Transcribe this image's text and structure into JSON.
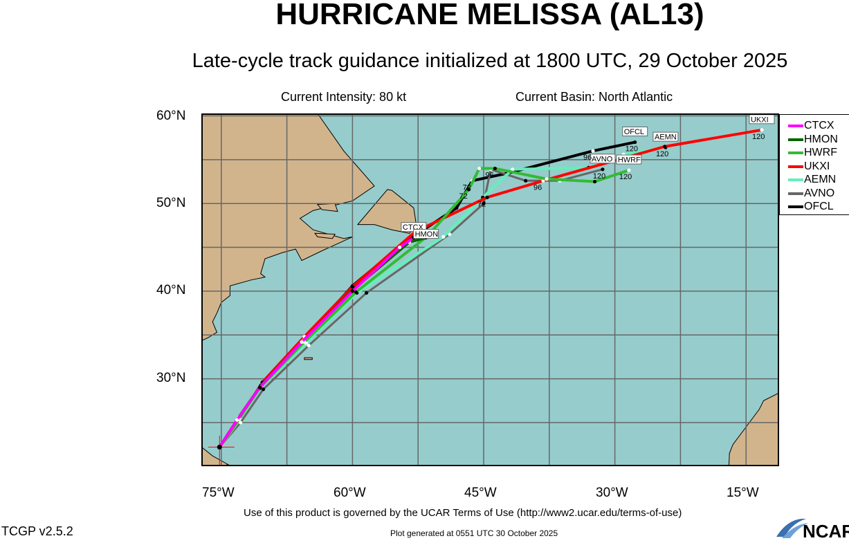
{
  "header": {
    "title": "HURRICANE MELISSA (AL13)",
    "subtitle": "Late-cycle track guidance initialized at 1800 UTC, 29 October 2025",
    "intensity": "Current Intensity: 80 kt",
    "basin": "Current Basin: North Atlantic"
  },
  "footer": {
    "terms": "Use of this product is governed by the UCAR Terms of Use (http://www2.ucar.edu/terms-of-use)",
    "version": "TCGP v2.5.2",
    "generated": "Plot generated at 0551 UTC   30 October 2025",
    "logo": "NCAR"
  },
  "chart_data": {
    "type": "map-tracks",
    "lon_range": [
      -77.2,
      -11.3
    ],
    "lat_range": [
      20.1,
      60.2
    ],
    "lat_ticks": [
      "60°N",
      "50°N",
      "40°N",
      "30°N"
    ],
    "lon_ticks": [
      "75°W",
      "60°W",
      "45°W",
      "30°W",
      "15°W"
    ],
    "colors": {
      "ocean": "#96cccc",
      "land": "#d2b48c",
      "grid": "#666666"
    },
    "series": [
      {
        "name": "CTCX",
        "color": "#ff00ff",
        "points": [
          [
            -75.2,
            22.2
          ],
          [
            -73.2,
            25.3
          ],
          [
            -70.6,
            29.0
          ],
          [
            -65.8,
            34.2
          ],
          [
            -60.0,
            40.0
          ],
          [
            -54.6,
            45.0
          ],
          [
            -53.0,
            46.1
          ]
        ],
        "end_label": "CTCX"
      },
      {
        "name": "HMON",
        "color": "#006400",
        "points": [
          [
            -75.2,
            22.2
          ],
          [
            -73.0,
            25.6
          ],
          [
            -70.5,
            29.2
          ],
          [
            -65.6,
            34.4
          ],
          [
            -59.8,
            40.3
          ],
          [
            -53.5,
            45.6
          ],
          [
            -51.6,
            46.1
          ]
        ],
        "end_label": "HMON"
      },
      {
        "name": "HWRF",
        "color": "#33bb33",
        "points": [
          [
            -75.2,
            22.2
          ],
          [
            -73.0,
            25.4
          ],
          [
            -70.5,
            29.1
          ],
          [
            -65.5,
            34.2
          ],
          [
            -59.6,
            39.9
          ],
          [
            -51.4,
            46.3
          ],
          [
            -46.7,
            51.6
          ],
          [
            -45.5,
            54.0
          ],
          [
            -43.7,
            54.0
          ],
          [
            -37.8,
            52.8
          ],
          [
            -32.3,
            52.5
          ],
          [
            -28.4,
            53.8
          ]
        ],
        "end_label": "HWRF",
        "hour_labels": [
          [
            "72",
            -46.7,
            51.6
          ],
          [
            "96",
            -43.7,
            54.0
          ],
          [
            "120",
            -28.4,
            53.8
          ]
        ]
      },
      {
        "name": "UKXI",
        "color": "#ff0000",
        "points": [
          [
            -75.2,
            22.2
          ],
          [
            -72.9,
            25.5
          ],
          [
            -70.3,
            29.6
          ],
          [
            -65.5,
            34.8
          ],
          [
            -60.0,
            40.5
          ],
          [
            -52.8,
            46.8
          ],
          [
            -44.6,
            50.7
          ],
          [
            -38.2,
            52.6
          ],
          [
            -24.3,
            56.5
          ],
          [
            -13.2,
            58.4
          ]
        ],
        "end_label": "UKXI",
        "hour_labels": [
          [
            "72",
            -44.6,
            50.7
          ],
          [
            "96",
            -38.2,
            52.6
          ],
          [
            "120",
            -13.2,
            58.4
          ]
        ]
      },
      {
        "name": "AEMN",
        "color": "#66eebb",
        "points": [
          [
            -75.2,
            22.2
          ],
          [
            -73.0,
            25.2
          ],
          [
            -70.6,
            28.9
          ],
          [
            -65.3,
            34.1
          ],
          [
            -59.5,
            39.8
          ],
          [
            -49.6,
            46.2
          ],
          [
            -45.1,
            50.7
          ],
          [
            -41.7,
            53.9
          ],
          [
            -33.0,
            54.1
          ],
          [
            -29.0,
            55.6
          ],
          [
            -24.2,
            56.4
          ]
        ],
        "end_label": "AEMN",
        "hour_labels": [
          [
            "120",
            -24.2,
            56.4
          ]
        ]
      },
      {
        "name": "AVNO",
        "color": "#666666",
        "points": [
          [
            -75.2,
            22.2
          ],
          [
            -72.8,
            25.0
          ],
          [
            -70.2,
            28.8
          ],
          [
            -65.0,
            33.8
          ],
          [
            -58.4,
            39.8
          ],
          [
            -48.9,
            46.5
          ],
          [
            -45.0,
            50.0
          ],
          [
            -44.2,
            53.9
          ],
          [
            -40.2,
            52.6
          ],
          [
            -36.3,
            52.6
          ],
          [
            -31.4,
            53.9
          ]
        ],
        "end_label": "AVNO",
        "hour_labels": [
          [
            "120",
            -31.4,
            53.9
          ]
        ]
      },
      {
        "name": "OFCL",
        "color": "#000000",
        "points": [
          [
            -75.2,
            22.2
          ],
          [
            -72.8,
            25.6
          ],
          [
            -70.4,
            29.3
          ],
          [
            -65.5,
            34.5
          ],
          [
            -60.0,
            40.6
          ],
          [
            -54.0,
            45.6
          ],
          [
            -48.1,
            49.5
          ],
          [
            -46.3,
            52.6
          ],
          [
            -42.1,
            53.5
          ],
          [
            -32.5,
            56.0
          ],
          [
            -27.7,
            57.0
          ]
        ],
        "end_label": "OFCL",
        "hour_labels": [
          [
            "72",
            -46.3,
            52.6
          ],
          [
            "96",
            -32.5,
            56.0
          ],
          [
            "120",
            -27.7,
            57.0
          ]
        ]
      }
    ],
    "legend_placement": "right"
  }
}
